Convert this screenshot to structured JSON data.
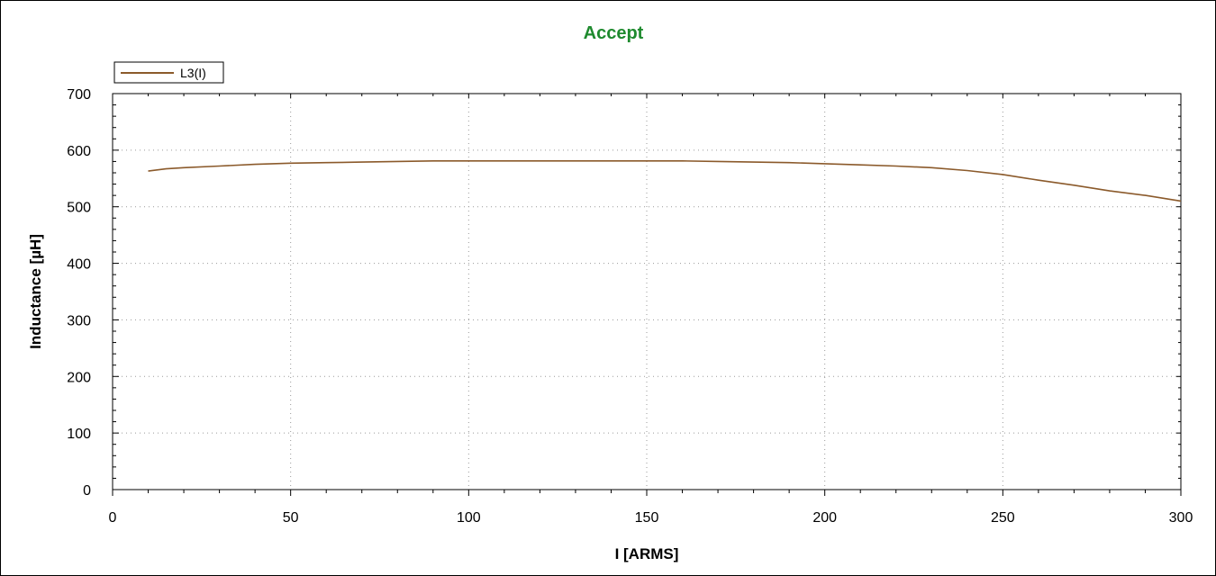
{
  "chart_data": {
    "type": "line",
    "title": "Accept",
    "title_color": "#1e8a2e",
    "xlabel": "I [ARMS]",
    "ylabel": "Inductance [µH]",
    "xlim": [
      0,
      300
    ],
    "ylim": [
      0,
      700
    ],
    "xticks": [
      0,
      50,
      100,
      150,
      200,
      250,
      300
    ],
    "yticks": [
      0,
      100,
      200,
      300,
      400,
      500,
      600,
      700
    ],
    "x_minor_step": 10,
    "y_minor_step": 20,
    "grid": true,
    "grid_style": "dotted",
    "legend_position": "top-left",
    "series": [
      {
        "name": "L3(I)",
        "color": "#8b5a2b",
        "x": [
          10,
          15,
          20,
          30,
          40,
          50,
          60,
          70,
          80,
          90,
          100,
          110,
          120,
          130,
          140,
          150,
          160,
          170,
          180,
          190,
          200,
          210,
          220,
          230,
          240,
          250,
          260,
          270,
          280,
          290,
          300
        ],
        "y": [
          563,
          567,
          569,
          572,
          575,
          577,
          578,
          579,
          580,
          581,
          581,
          581,
          581,
          581,
          581,
          581,
          581,
          580,
          579,
          578,
          576,
          574,
          572,
          569,
          564,
          557,
          547,
          538,
          528,
          520,
          510
        ]
      }
    ]
  }
}
